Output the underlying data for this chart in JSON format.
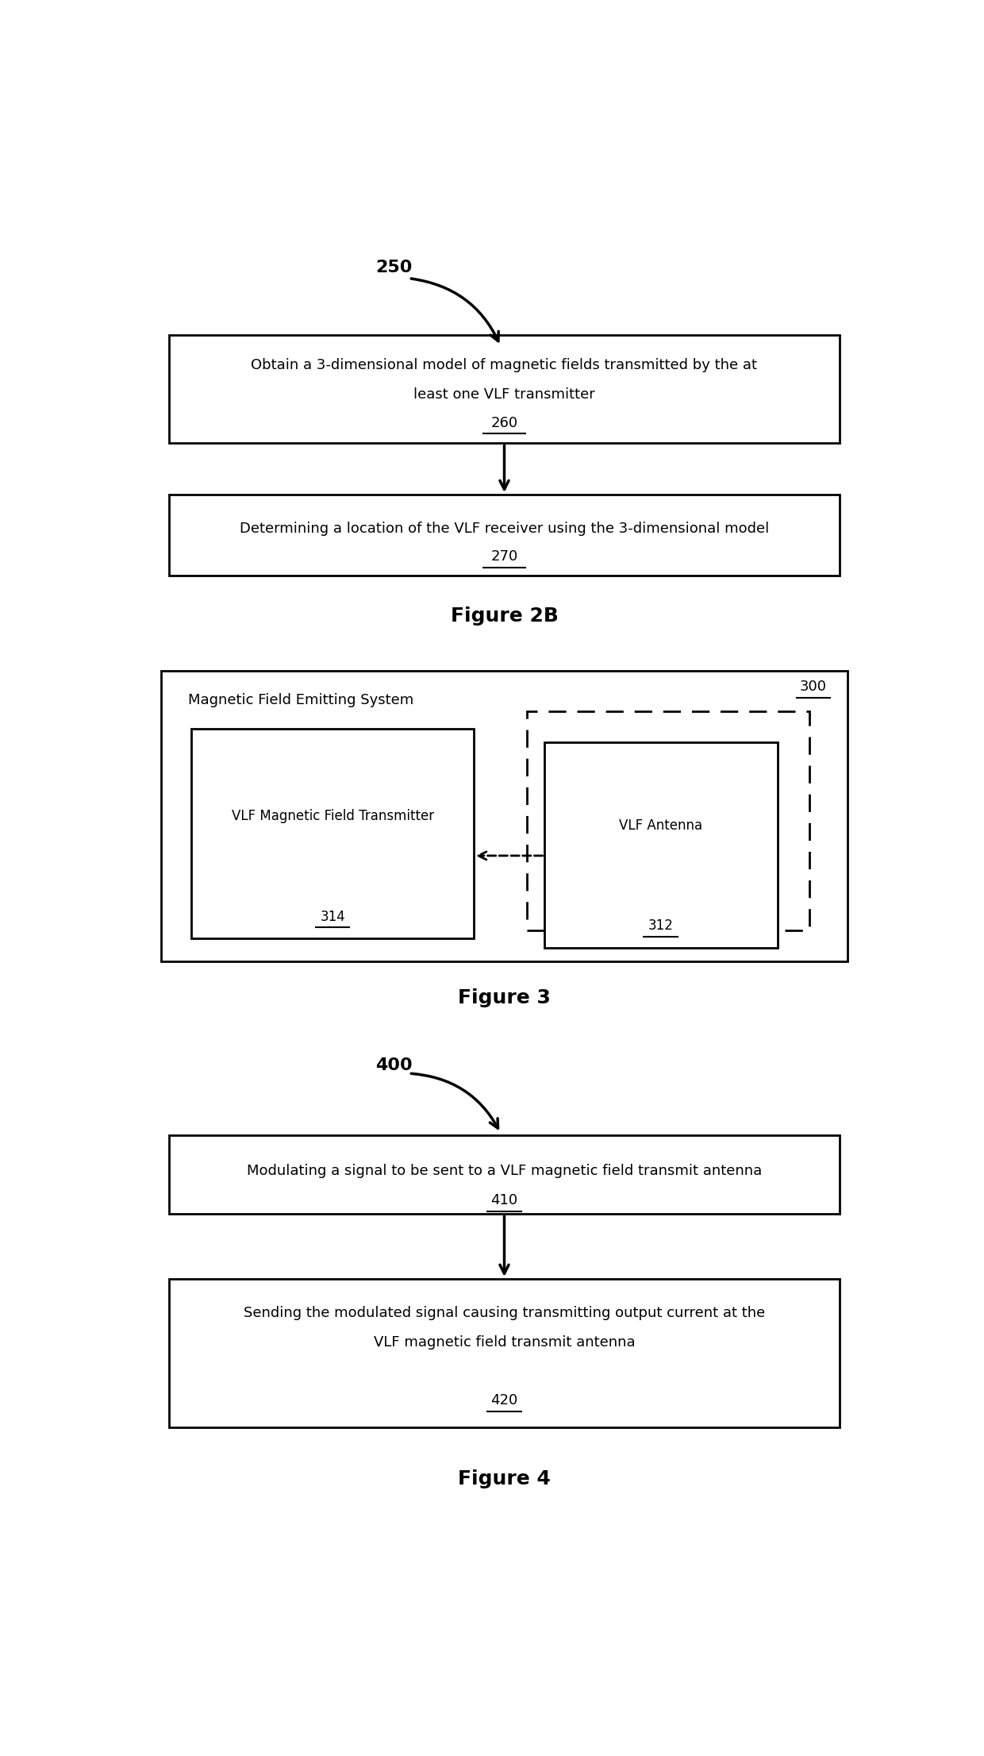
{
  "bg_color": "#ffffff",
  "fig_width": 12.4,
  "fig_height": 22.12,
  "fig2b": {
    "label_250": "250",
    "box1_text1": "Obtain a 3-dimensional model of magnetic fields transmitted by the at",
    "box1_text2": "least one VLF transmitter",
    "box1_label": "260",
    "box2_text1": "Determining a location of the VLF receiver using the 3-dimensional model",
    "box2_label": "270",
    "figure_label": "Figure 2B"
  },
  "fig3": {
    "outer_label": "300",
    "system_text": "Magnetic Field Emitting System",
    "inner1_text": "VLF Magnetic Field Transmitter",
    "inner1_label": "314",
    "inner2_text": "VLF Antenna",
    "inner2_label": "312",
    "figure_label": "Figure 3"
  },
  "fig4": {
    "label_400": "400",
    "box1_text": "Modulating a signal to be sent to a VLF magnetic field transmit antenna",
    "box1_label": "410",
    "box2_text1": "Sending the modulated signal causing transmitting output current at the",
    "box2_text2": "VLF magnetic field transmit antenna",
    "box2_label": "420",
    "figure_label": "Figure 4"
  }
}
